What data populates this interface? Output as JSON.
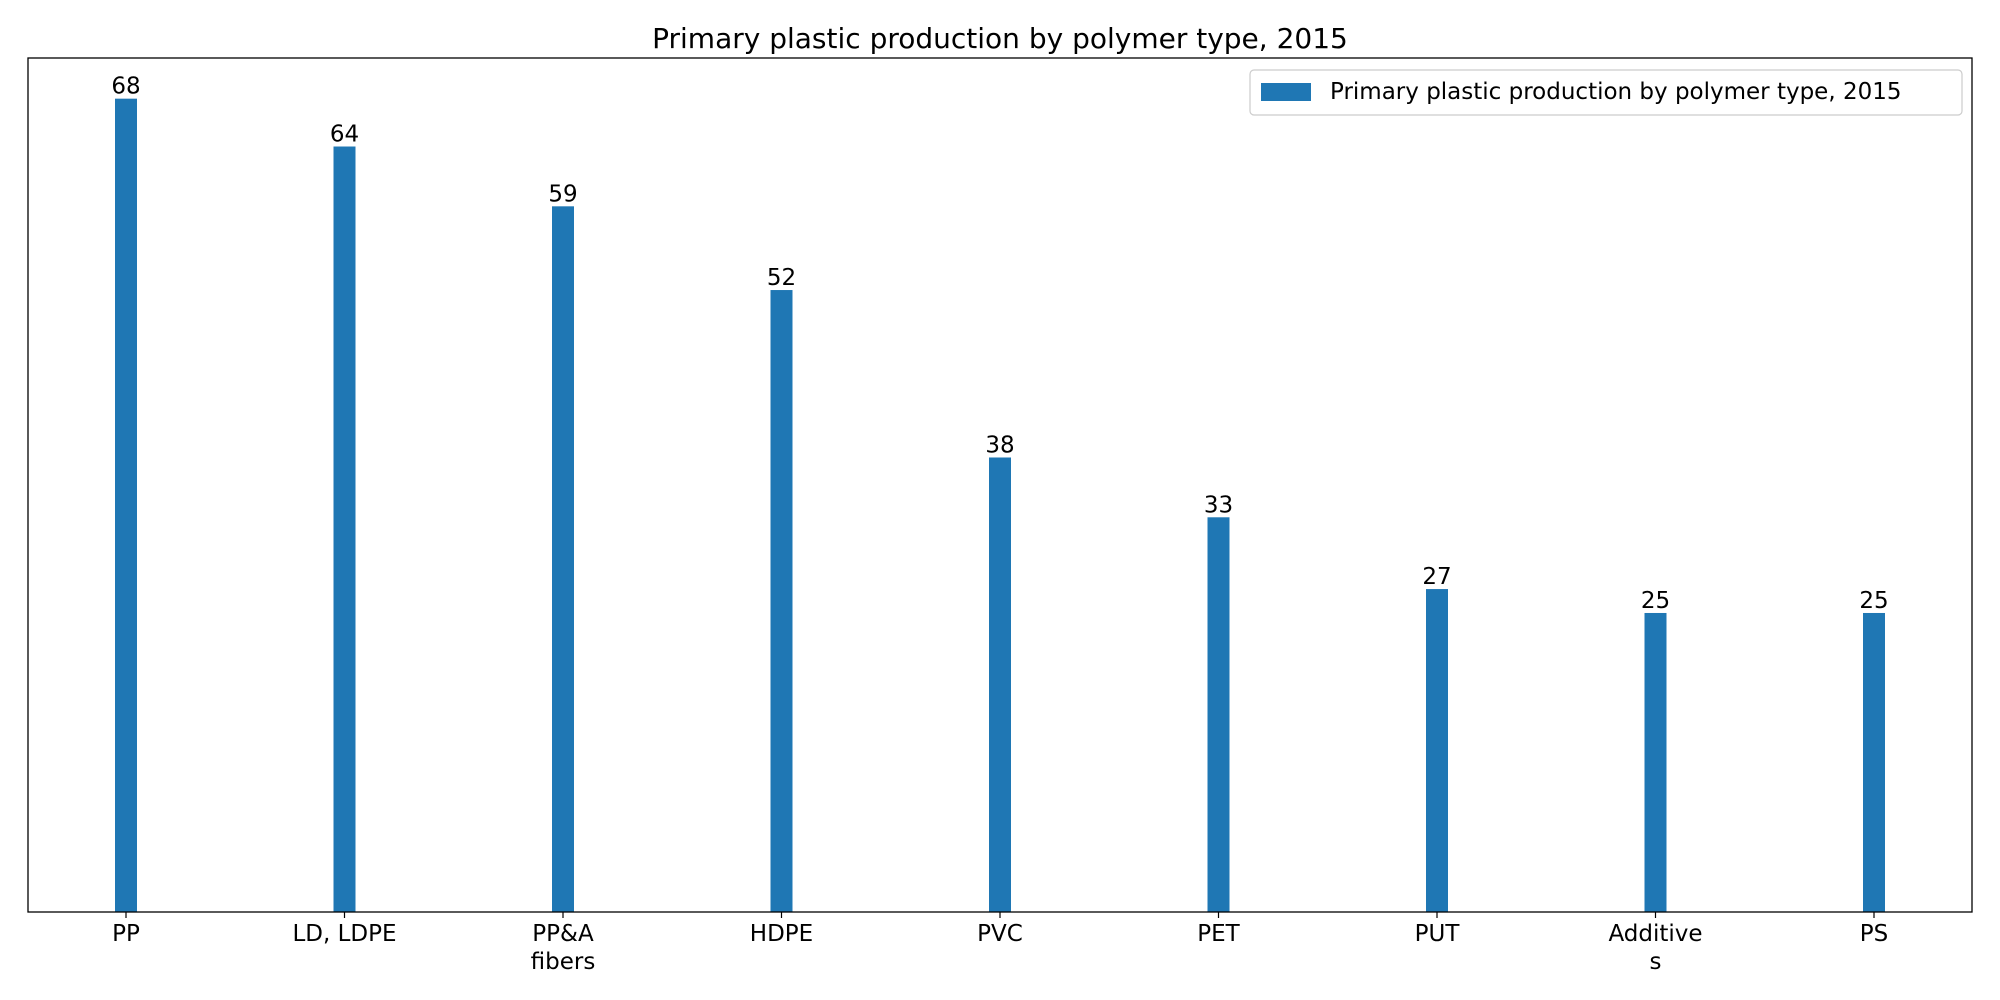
{
  "chart_data": {
    "type": "bar",
    "title": "Primary plastic production by polymer type, 2015",
    "categories": [
      [
        "PP"
      ],
      [
        "LD, LDPE"
      ],
      [
        "PP&A",
        "fibers"
      ],
      [
        "HDPE"
      ],
      [
        "PVC"
      ],
      [
        "PET"
      ],
      [
        "PUT"
      ],
      [
        "Additive",
        "s"
      ],
      [
        "PS"
      ]
    ],
    "series": [
      {
        "name": "Primary plastic production by polymer type, 2015",
        "values": [
          68,
          64,
          59,
          52,
          38,
          33,
          27,
          25,
          25
        ],
        "color": "#1f77b4"
      }
    ],
    "xlabel": "",
    "ylabel": "",
    "ylim": [
      0,
      71.4
    ],
    "y_axis_visible": false,
    "grid": false,
    "legend_position": "top-right"
  }
}
